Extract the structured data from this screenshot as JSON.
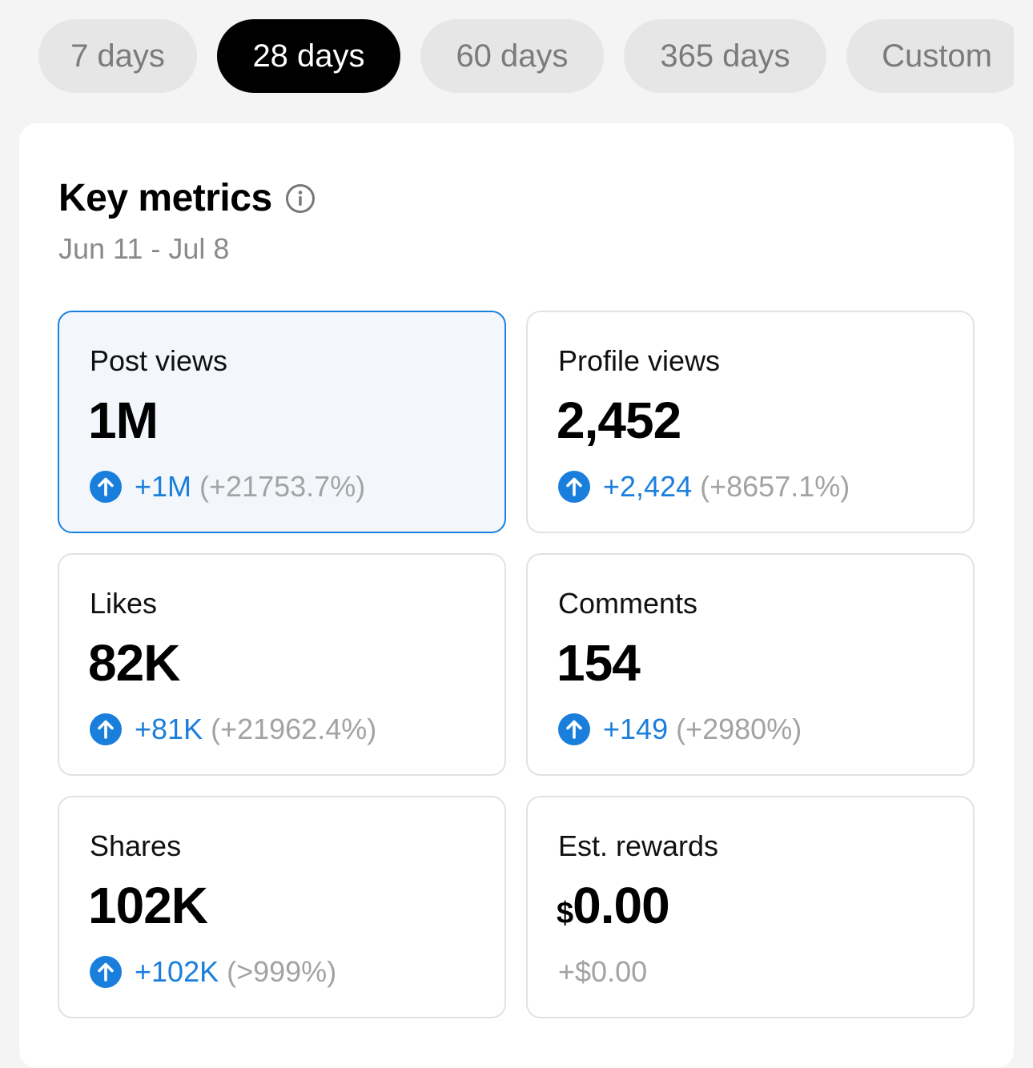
{
  "tabs": [
    {
      "label": "7 days",
      "active": false
    },
    {
      "label": "28 days",
      "active": true
    },
    {
      "label": "60 days",
      "active": false
    },
    {
      "label": "365 days",
      "active": false
    },
    {
      "label": "Custom",
      "active": false
    }
  ],
  "key_metrics": {
    "title": "Key metrics",
    "date_range": "Jun 11 - Jul 8",
    "metrics": [
      {
        "label": "Post views",
        "value": "1M",
        "delta": "+1M",
        "pct": "(+21753.7%)",
        "selected": true,
        "icon": "arrow-up-circle-icon"
      },
      {
        "label": "Profile views",
        "value": "2,452",
        "delta": "+2,424",
        "pct": "(+8657.1%)",
        "selected": false,
        "icon": "arrow-up-circle-icon"
      },
      {
        "label": "Likes",
        "value": "82K",
        "delta": "+81K",
        "pct": "(+21962.4%)",
        "selected": false,
        "icon": "arrow-up-circle-icon"
      },
      {
        "label": "Comments",
        "value": "154",
        "delta": "+149",
        "pct": "(+2980%)",
        "selected": false,
        "icon": "arrow-up-circle-icon"
      },
      {
        "label": "Shares",
        "value": "102K",
        "delta": "+102K",
        "pct": "(>999%)",
        "selected": false,
        "icon": "arrow-up-circle-icon"
      },
      {
        "label": "Est. rewards",
        "currency": "$",
        "value": "0.00",
        "change": "+$0.00",
        "selected": false
      }
    ]
  },
  "colors": {
    "accent_blue": "#1a7fdc",
    "selected_border": "#1a80e0",
    "selected_bg": "#f3f7fc",
    "muted_text": "#a3a3a3"
  }
}
